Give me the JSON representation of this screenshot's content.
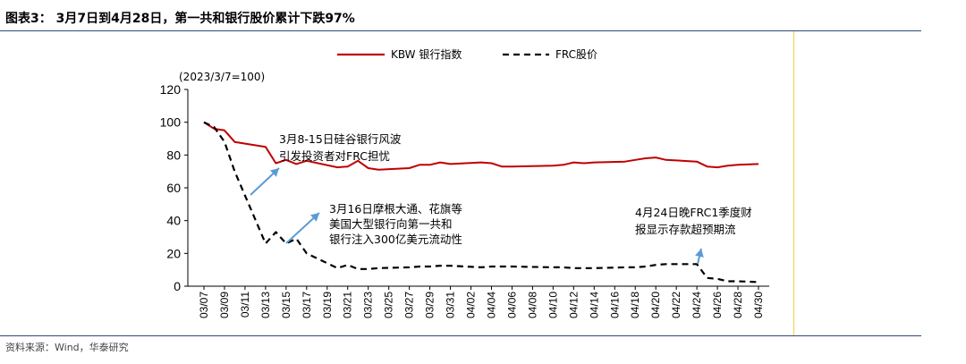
{
  "header": {
    "title": "图表3： 3月7日到4月28日，第一共和银行股价累计下跌97%"
  },
  "footer": {
    "source": "资料来源：Wind，华泰研究"
  },
  "chart_data": {
    "type": "line",
    "unit_label": "(2023/3/7=100)",
    "x": [
      "03/07",
      "03/08",
      "03/09",
      "03/10",
      "03/13",
      "03/14",
      "03/15",
      "03/16",
      "03/17",
      "03/20",
      "03/21",
      "03/22",
      "03/23",
      "03/24",
      "03/27",
      "03/28",
      "03/29",
      "03/30",
      "03/31",
      "04/03",
      "04/04",
      "04/05",
      "04/06",
      "04/10",
      "04/11",
      "04/12",
      "04/13",
      "04/14",
      "04/17",
      "04/18",
      "04/19",
      "04/20",
      "04/21",
      "04/24",
      "04/25",
      "04/26",
      "04/27",
      "04/28",
      "04/30"
    ],
    "x_ticks": [
      "03/07",
      "03/09",
      "03/11",
      "03/13",
      "03/15",
      "03/17",
      "03/19",
      "03/21",
      "03/23",
      "03/25",
      "03/27",
      "03/29",
      "03/31",
      "04/02",
      "04/04",
      "04/06",
      "04/08",
      "04/10",
      "04/12",
      "04/14",
      "04/16",
      "04/18",
      "04/20",
      "04/22",
      "04/24",
      "04/26",
      "04/28",
      "04/30"
    ],
    "ylim": [
      0,
      120
    ],
    "y_ticks": [
      0,
      20,
      40,
      60,
      80,
      100,
      120
    ],
    "series": [
      {
        "name": "KBW 银行指数",
        "color": "#c00000",
        "style": "solid",
        "values": [
          [
            "03/07",
            100
          ],
          [
            "03/08",
            96
          ],
          [
            "03/09",
            95
          ],
          [
            "03/10",
            88
          ],
          [
            "03/13",
            85
          ],
          [
            "03/14",
            75
          ],
          [
            "03/15",
            77
          ],
          [
            "03/16",
            74.5
          ],
          [
            "03/17",
            76.5
          ],
          [
            "03/20",
            72.5
          ],
          [
            "03/21",
            73
          ],
          [
            "03/22",
            76.5
          ],
          [
            "03/23",
            72
          ],
          [
            "03/24",
            71
          ],
          [
            "03/27",
            72
          ],
          [
            "03/28",
            74
          ],
          [
            "03/29",
            74
          ],
          [
            "03/30",
            75.5
          ],
          [
            "03/31",
            74.5
          ],
          [
            "04/03",
            75.5
          ],
          [
            "04/04",
            75
          ],
          [
            "04/05",
            73
          ],
          [
            "04/06",
            73
          ],
          [
            "04/10",
            73.5
          ],
          [
            "04/11",
            74
          ],
          [
            "04/12",
            75.5
          ],
          [
            "04/13",
            75
          ],
          [
            "04/14",
            75.5
          ],
          [
            "04/17",
            76
          ],
          [
            "04/18",
            77
          ],
          [
            "04/19",
            78
          ],
          [
            "04/20",
            78.5
          ],
          [
            "04/21",
            77
          ],
          [
            "04/24",
            76
          ],
          [
            "04/25",
            73
          ],
          [
            "04/26",
            72.5
          ],
          [
            "04/27",
            73.5
          ],
          [
            "04/28",
            74
          ],
          [
            "04/30",
            74.5
          ]
        ]
      },
      {
        "name": "FRC股价",
        "color": "#000000",
        "style": "dashed",
        "values": [
          [
            "03/07",
            100
          ],
          [
            "03/08",
            97
          ],
          [
            "03/09",
            88
          ],
          [
            "03/10",
            70
          ],
          [
            "03/13",
            26
          ],
          [
            "03/14",
            33
          ],
          [
            "03/15",
            26
          ],
          [
            "03/16",
            29
          ],
          [
            "03/17",
            20
          ],
          [
            "03/20",
            11
          ],
          [
            "03/21",
            13
          ],
          [
            "03/22",
            10.5
          ],
          [
            "03/23",
            10.5
          ],
          [
            "03/24",
            11
          ],
          [
            "03/27",
            11.5
          ],
          [
            "03/28",
            12
          ],
          [
            "03/29",
            12
          ],
          [
            "03/30",
            12.5
          ],
          [
            "03/31",
            12.5
          ],
          [
            "04/03",
            11.5
          ],
          [
            "04/04",
            12
          ],
          [
            "04/05",
            12
          ],
          [
            "04/06",
            12
          ],
          [
            "04/10",
            11.5
          ],
          [
            "04/11",
            11.5
          ],
          [
            "04/12",
            11
          ],
          [
            "04/13",
            11
          ],
          [
            "04/14",
            11
          ],
          [
            "04/17",
            11.5
          ],
          [
            "04/18",
            11.5
          ],
          [
            "04/19",
            12
          ],
          [
            "04/20",
            13
          ],
          [
            "04/21",
            13.5
          ],
          [
            "04/24",
            13.5
          ],
          [
            "04/25",
            5
          ],
          [
            "04/26",
            4.5
          ],
          [
            "04/27",
            3
          ],
          [
            "04/28",
            3
          ],
          [
            "04/30",
            2.5
          ]
        ]
      }
    ],
    "annotations": [
      {
        "lines": [
          "3月8-15日硅谷银行风波",
          "引发投资者对FRC担忧"
        ]
      },
      {
        "lines": [
          "3月16日摩根大通、花旗等",
          "美国大型银行向第一共和",
          "银行注入300亿美元流动性"
        ]
      },
      {
        "lines": [
          "4月24日晚FRC1季度财",
          "报显示存款超预期流"
        ]
      }
    ],
    "legend_position": "top"
  }
}
